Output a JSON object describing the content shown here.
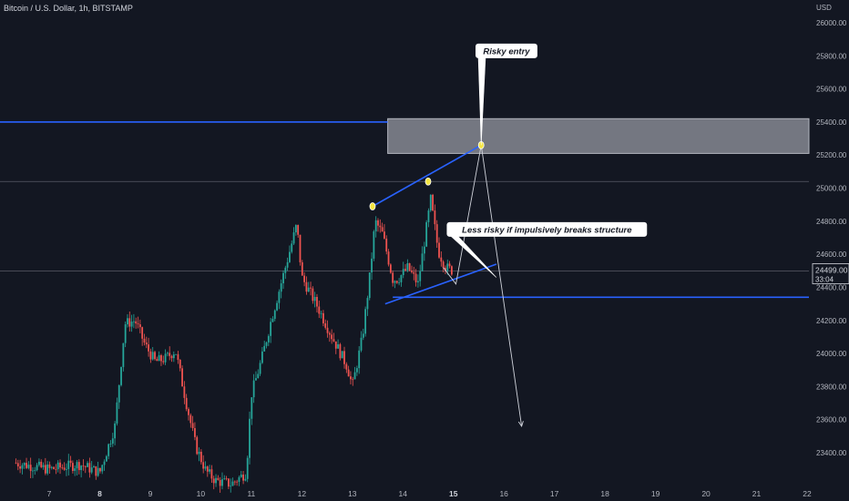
{
  "header": {
    "symbol": "Bitcoin / U.S. Dollar, 1h, BITSTAMP",
    "currency": "USD"
  },
  "chart_data": {
    "type": "candlestick",
    "title": "Bitcoin / U.S. Dollar, 1h, BITSTAMP",
    "xlabel": "",
    "ylabel": "USD",
    "grid": false,
    "ylim": [
      23200,
      26100
    ],
    "xlim": [
      6.3,
      22.0
    ],
    "x_ticks": [
      "7",
      "8",
      "9",
      "10",
      "11",
      "12",
      "13",
      "14",
      "15",
      "16",
      "17",
      "18",
      "19",
      "20",
      "21",
      "22"
    ],
    "y_ticks": [
      23400,
      23600,
      23800,
      24000,
      24200,
      24400,
      24600,
      24800,
      25000,
      25200,
      25400,
      25600,
      25800,
      26000
    ],
    "last_price": {
      "label": "24499.00",
      "value": 24499,
      "countdown": "33:04"
    },
    "price_path": [
      [
        6.3,
        23340
      ],
      [
        7.0,
        23300
      ],
      [
        7.6,
        23330
      ],
      [
        8.0,
        23280
      ],
      [
        8.3,
        23560
      ],
      [
        8.5,
        24180
      ],
      [
        8.7,
        24200
      ],
      [
        8.9,
        24050
      ],
      [
        9.1,
        23950
      ],
      [
        9.3,
        23970
      ],
      [
        9.5,
        24020
      ],
      [
        9.7,
        23720
      ],
      [
        9.9,
        23440
      ],
      [
        10.1,
        23290
      ],
      [
        10.3,
        23230
      ],
      [
        10.6,
        23210
      ],
      [
        10.9,
        23280
      ],
      [
        11.0,
        23750
      ],
      [
        11.2,
        23960
      ],
      [
        11.4,
        24210
      ],
      [
        11.7,
        24550
      ],
      [
        11.9,
        24780
      ],
      [
        12.0,
        24460
      ],
      [
        12.3,
        24290
      ],
      [
        12.6,
        24100
      ],
      [
        12.9,
        23920
      ],
      [
        13.0,
        23800
      ],
      [
        13.2,
        24100
      ],
      [
        13.35,
        24480
      ],
      [
        13.45,
        24800
      ],
      [
        13.6,
        24720
      ],
      [
        13.8,
        24450
      ],
      [
        13.9,
        24450
      ],
      [
        14.1,
        24520
      ],
      [
        14.3,
        24420
      ],
      [
        14.55,
        24930
      ],
      [
        14.7,
        24620
      ],
      [
        14.85,
        24520
      ],
      [
        15.0,
        24499
      ]
    ],
    "annotations": [
      {
        "type": "hline",
        "y": 25400,
        "x_end": 13.7,
        "color": "#2962ff"
      },
      {
        "type": "hline",
        "y": 25040,
        "color": "#787b86"
      },
      {
        "type": "hline",
        "y": 24499,
        "color": "#787b86"
      },
      {
        "type": "hline",
        "y": 24340,
        "x_start": 13.8,
        "color": "#2962ff"
      },
      {
        "type": "zone",
        "x": [
          13.7,
          22.0
        ],
        "y": [
          25210,
          25420
        ],
        "color": "#9598a1"
      },
      {
        "type": "trendline",
        "from": [
          13.4,
          24890
        ],
        "to": [
          15.55,
          25260
        ],
        "color": "#2962ff"
      },
      {
        "type": "trendline",
        "from": [
          13.65,
          24300
        ],
        "to": [
          15.85,
          24540
        ],
        "color": "#2962ff"
      },
      {
        "type": "marker",
        "at": [
          13.4,
          24890
        ],
        "color": "#f5e642"
      },
      {
        "type": "marker",
        "at": [
          14.5,
          25040
        ],
        "color": "#f5e642"
      },
      {
        "type": "marker",
        "at": [
          15.55,
          25260
        ],
        "color": "#f5e642"
      },
      {
        "type": "path",
        "points": [
          [
            14.8,
            24520
          ],
          [
            15.05,
            24420
          ],
          [
            15.55,
            25260
          ],
          [
            16.35,
            23560
          ]
        ],
        "color": "#d1d4dc"
      },
      {
        "type": "callout",
        "text": "Risky entry",
        "at": [
          16.05,
          25830
        ],
        "pointer": [
          15.55,
          25260
        ]
      },
      {
        "type": "callout",
        "text": "Less risky if impulsively breaks structure",
        "at": [
          16.85,
          24750
        ],
        "pointer": [
          15.85,
          24460
        ]
      }
    ]
  }
}
